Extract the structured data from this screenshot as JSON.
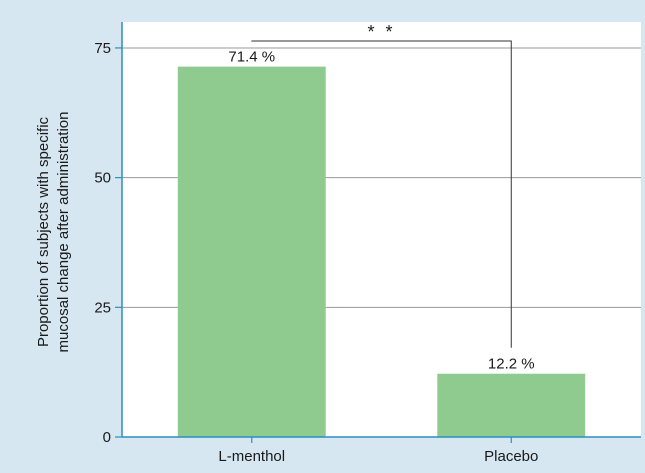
{
  "chart_data": {
    "type": "bar",
    "categories": [
      "L-menthol",
      "Placebo"
    ],
    "values": [
      71.4,
      12.2
    ],
    "value_labels": [
      "71.4 %",
      "12.2 %"
    ],
    "title": "",
    "xlabel": "",
    "ylabel_lines": [
      "Proportion of subjects with specific",
      "mucosal change after administration"
    ],
    "ylim": [
      0,
      80
    ],
    "yticks": [
      0,
      25,
      50,
      75
    ],
    "grid": true,
    "significance": {
      "label": "* *",
      "between": [
        "L-menthol",
        "Placebo"
      ]
    },
    "colors": {
      "bar": "#8fcb8f",
      "plot_background": "#ffffff",
      "figure_background": "#d6e7f2",
      "axis": "#2a8fbf",
      "grid": "#9a9a9a",
      "bracket": "#333333"
    }
  }
}
